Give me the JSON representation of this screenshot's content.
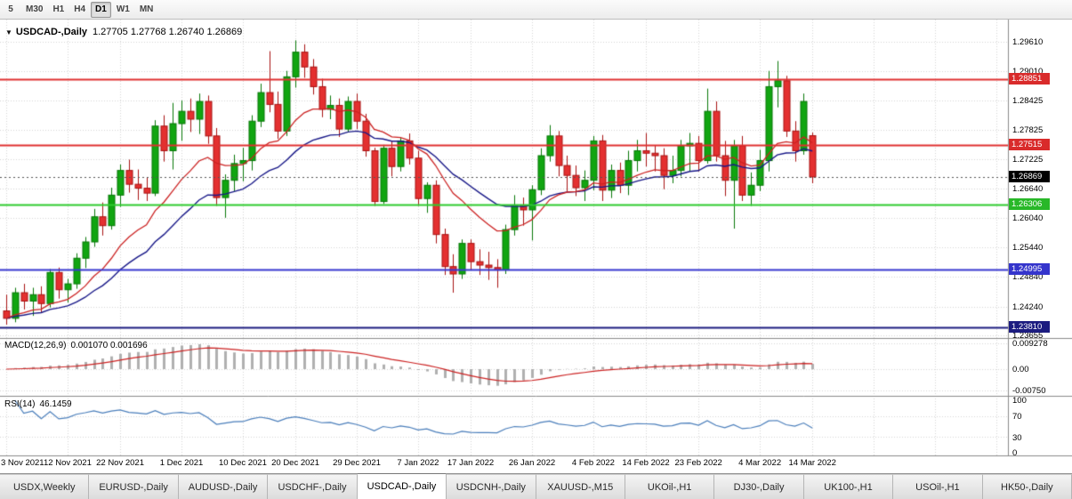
{
  "toolbar": {
    "timeframes": [
      {
        "label": "5",
        "active": false
      },
      {
        "label": "M30",
        "active": false
      },
      {
        "label": "H1",
        "active": false
      },
      {
        "label": "H4",
        "active": false
      },
      {
        "label": "D1",
        "active": true
      },
      {
        "label": "W1",
        "active": false
      },
      {
        "label": "MN",
        "active": false
      }
    ]
  },
  "chart": {
    "marker": "▼",
    "symbol_title": "USDCAD-,Daily",
    "ohlc_text": "1.27705 1.27768 1.26740 1.26869"
  },
  "indicators": {
    "macd": {
      "label": "MACD(12,26,9)",
      "values": "0.001070 0.001696",
      "axis": [
        "0.009278",
        "0.00",
        "-0.00750"
      ]
    },
    "rsi": {
      "label": "RSI(14)",
      "value": "46.1459",
      "axis": [
        "100",
        "70",
        "30",
        "0"
      ]
    }
  },
  "price_axis": {
    "badges": [
      {
        "price": 1.28851,
        "color": "#d92b2b",
        "name": "resistance-1-badge"
      },
      {
        "price": 1.27515,
        "color": "#d92b2b",
        "name": "resistance-2-badge"
      },
      {
        "price": 1.26869,
        "color": "#000000",
        "name": "current-price-badge"
      },
      {
        "price": 1.26306,
        "color": "#28b828",
        "name": "support-green-badge"
      },
      {
        "price": 1.24995,
        "color": "#3434cc",
        "name": "support-blue-badge"
      },
      {
        "price": 1.2381,
        "color": "#1c1c80",
        "name": "support-navy-badge"
      }
    ]
  },
  "hlines": [
    {
      "price": 1.28851,
      "color": "#e03030",
      "width": 2
    },
    {
      "price": 1.27515,
      "color": "#e03030",
      "width": 2
    },
    {
      "price": 1.26306,
      "color": "#2ecc2e",
      "width": 2
    },
    {
      "price": 1.24995,
      "color": "#3838d0",
      "width": 2
    },
    {
      "price": 1.2381,
      "color": "#1c1c80",
      "width": 2
    }
  ],
  "colors": {
    "bull": "#11a511",
    "bull_border": "#077707",
    "bear": "#e43030",
    "bear_border": "#a81212",
    "ma_fast": "#cc2222",
    "ma_slow": "#181888",
    "macd_hist": "#b0b0b0",
    "macd_signal": "#cc2222",
    "rsi_line": "#4a7ebb",
    "grid": "#d6d6d6",
    "separator": "#8a8a8a"
  },
  "chart_data": {
    "type": "candlestick",
    "symbol": "USDCAD",
    "period": "Daily",
    "current_ohlc": {
      "open": "1.27705",
      "high": "1.27768",
      "low": "1.26740",
      "close": "1.26869"
    },
    "current_close": 1.26869,
    "y_axis_ticks": [
      1.2961,
      1.2901,
      1.28425,
      1.27825,
      1.27225,
      1.2664,
      1.2604,
      1.2544,
      1.2484,
      1.2424,
      1.23655
    ],
    "date_ticks": [
      {
        "index": 0,
        "label": "3 Nov 2021"
      },
      {
        "index": 7,
        "label": "12 Nov 2021"
      },
      {
        "index": 13,
        "label": "22 Nov 2021"
      },
      {
        "index": 20,
        "label": "1 Dec 2021"
      },
      {
        "index": 27,
        "label": "10 Dec 2021"
      },
      {
        "index": 33,
        "label": "20 Dec 2021"
      },
      {
        "index": 40,
        "label": "29 Dec 2021"
      },
      {
        "index": 47,
        "label": "7 Jan 2022"
      },
      {
        "index": 53,
        "label": "17 Jan 2022"
      },
      {
        "index": 60,
        "label": "26 Jan 2022"
      },
      {
        "index": 67,
        "label": "4 Feb 2022"
      },
      {
        "index": 73,
        "label": "14 Feb 2022"
      },
      {
        "index": 79,
        "label": "23 Feb 2022"
      },
      {
        "index": 86,
        "label": "4 Mar 2022"
      },
      {
        "index": 92,
        "label": "14 Mar 2022"
      }
    ],
    "candles": [
      [
        1.2415,
        1.2448,
        1.2387,
        1.24
      ],
      [
        1.24,
        1.2462,
        1.2392,
        1.2452
      ],
      [
        1.2452,
        1.247,
        1.2418,
        1.2435
      ],
      [
        1.2435,
        1.2462,
        1.2405,
        1.2448
      ],
      [
        1.2448,
        1.2465,
        1.2412,
        1.243
      ],
      [
        1.243,
        1.25,
        1.2422,
        1.2493
      ],
      [
        1.2493,
        1.2503,
        1.244,
        1.2458
      ],
      [
        1.2458,
        1.248,
        1.2432,
        1.247
      ],
      [
        1.247,
        1.2532,
        1.246,
        1.2522
      ],
      [
        1.2522,
        1.2565,
        1.2502,
        1.2555
      ],
      [
        1.2555,
        1.2622,
        1.2545,
        1.2606
      ],
      [
        1.2606,
        1.2635,
        1.2568,
        1.2588
      ],
      [
        1.2588,
        1.2665,
        1.258,
        1.265
      ],
      [
        1.265,
        1.2712,
        1.2626,
        1.27
      ],
      [
        1.27,
        1.2722,
        1.2655,
        1.2672
      ],
      [
        1.2672,
        1.2702,
        1.264,
        1.2664
      ],
      [
        1.2664,
        1.2686,
        1.2638,
        1.2654
      ],
      [
        1.2654,
        1.2802,
        1.2648,
        1.279
      ],
      [
        1.279,
        1.2812,
        1.2718,
        1.274
      ],
      [
        1.274,
        1.2837,
        1.2702,
        1.2795
      ],
      [
        1.2795,
        1.2842,
        1.276,
        1.282
      ],
      [
        1.282,
        1.2846,
        1.2778,
        1.2804
      ],
      [
        1.2804,
        1.2856,
        1.2774,
        1.284
      ],
      [
        1.284,
        1.2852,
        1.2754,
        1.277
      ],
      [
        1.277,
        1.2786,
        1.2628,
        1.2645
      ],
      [
        1.2645,
        1.2692,
        1.2604,
        1.268
      ],
      [
        1.268,
        1.2732,
        1.2658,
        1.2714
      ],
      [
        1.2714,
        1.2746,
        1.2678,
        1.272
      ],
      [
        1.272,
        1.2812,
        1.27,
        1.28
      ],
      [
        1.28,
        1.2876,
        1.2788,
        1.2858
      ],
      [
        1.2858,
        1.2942,
        1.2818,
        1.2834
      ],
      [
        1.2834,
        1.286,
        1.2764,
        1.278
      ],
      [
        1.278,
        1.2902,
        1.277,
        1.289
      ],
      [
        1.289,
        1.2964,
        1.2868,
        1.294
      ],
      [
        1.294,
        1.2956,
        1.2888,
        1.291
      ],
      [
        1.291,
        1.2926,
        1.2854,
        1.287
      ],
      [
        1.287,
        1.2886,
        1.2808,
        1.2824
      ],
      [
        1.2824,
        1.2852,
        1.2804,
        1.2832
      ],
      [
        1.2832,
        1.2846,
        1.2768,
        1.2784
      ],
      [
        1.2784,
        1.285,
        1.2778,
        1.284
      ],
      [
        1.284,
        1.2856,
        1.2784,
        1.28
      ],
      [
        1.28,
        1.2815,
        1.2728,
        1.274
      ],
      [
        1.274,
        1.2746,
        1.2628,
        1.2637
      ],
      [
        1.2637,
        1.2752,
        1.2632,
        1.2745
      ],
      [
        1.2745,
        1.276,
        1.2688,
        1.2708
      ],
      [
        1.2708,
        1.2766,
        1.2698,
        1.276
      ],
      [
        1.276,
        1.2775,
        1.2712,
        1.2725
      ],
      [
        1.2725,
        1.274,
        1.2628,
        1.2643
      ],
      [
        1.2643,
        1.2676,
        1.2614,
        1.267
      ],
      [
        1.267,
        1.268,
        1.2552,
        1.257
      ],
      [
        1.257,
        1.2582,
        1.2488,
        1.2505
      ],
      [
        1.2505,
        1.253,
        1.2452,
        1.249
      ],
      [
        1.249,
        1.256,
        1.248,
        1.2552
      ],
      [
        1.2552,
        1.256,
        1.2498,
        1.2515
      ],
      [
        1.2515,
        1.254,
        1.2488,
        1.2508
      ],
      [
        1.2508,
        1.2535,
        1.2478,
        1.2503
      ],
      [
        1.2503,
        1.252,
        1.2462,
        1.2498
      ],
      [
        1.2498,
        1.259,
        1.249,
        1.258
      ],
      [
        1.258,
        1.265,
        1.2568,
        1.263
      ],
      [
        1.263,
        1.2645,
        1.2588,
        1.262
      ],
      [
        1.262,
        1.267,
        1.2558,
        1.2661
      ],
      [
        1.2661,
        1.2745,
        1.265,
        1.273
      ],
      [
        1.273,
        1.2792,
        1.2718,
        1.277
      ],
      [
        1.277,
        1.278,
        1.2688,
        1.271
      ],
      [
        1.271,
        1.273,
        1.2658,
        1.269
      ],
      [
        1.269,
        1.271,
        1.2648,
        1.2665
      ],
      [
        1.2665,
        1.27,
        1.2638,
        1.268
      ],
      [
        1.268,
        1.277,
        1.266,
        1.276
      ],
      [
        1.276,
        1.2772,
        1.2638,
        1.266
      ],
      [
        1.266,
        1.2712,
        1.2644,
        1.27
      ],
      [
        1.27,
        1.2716,
        1.2654,
        1.267
      ],
      [
        1.267,
        1.274,
        1.265,
        1.272
      ],
      [
        1.272,
        1.2762,
        1.2698,
        1.274
      ],
      [
        1.274,
        1.2776,
        1.2708,
        1.2735
      ],
      [
        1.2735,
        1.275,
        1.2698,
        1.273
      ],
      [
        1.273,
        1.2745,
        1.2662,
        1.269
      ],
      [
        1.269,
        1.273,
        1.2674,
        1.27
      ],
      [
        1.27,
        1.2762,
        1.2688,
        1.275
      ],
      [
        1.275,
        1.2776,
        1.2698,
        1.2755
      ],
      [
        1.2755,
        1.277,
        1.2698,
        1.272
      ],
      [
        1.272,
        1.2866,
        1.2714,
        1.282
      ],
      [
        1.282,
        1.284,
        1.2718,
        1.273
      ],
      [
        1.273,
        1.276,
        1.2648,
        1.268
      ],
      [
        1.268,
        1.2762,
        1.2582,
        1.275
      ],
      [
        1.275,
        1.277,
        1.2638,
        1.265
      ],
      [
        1.265,
        1.2696,
        1.2628,
        1.267
      ],
      [
        1.267,
        1.2742,
        1.2658,
        1.272
      ],
      [
        1.272,
        1.2902,
        1.2698,
        1.287
      ],
      [
        1.287,
        1.2922,
        1.2828,
        1.2882
      ],
      [
        1.2882,
        1.2892,
        1.2768,
        1.278
      ],
      [
        1.278,
        1.28,
        1.2718,
        1.274
      ],
      [
        1.274,
        1.2856,
        1.2732,
        1.284
      ],
      [
        1.27705,
        1.27768,
        1.2674,
        1.26869
      ]
    ]
  },
  "tabs": [
    {
      "label": "USDX,Weekly",
      "active": false
    },
    {
      "label": "EURUSD-,Daily",
      "active": false
    },
    {
      "label": "AUDUSD-,Daily",
      "active": false
    },
    {
      "label": "USDCHF-,Daily",
      "active": false
    },
    {
      "label": "USDCAD-,Daily",
      "active": true
    },
    {
      "label": "USDCNH-,Daily",
      "active": false
    },
    {
      "label": "XAUUSD-,M15",
      "active": false
    },
    {
      "label": "UKOil-,H1",
      "active": false
    },
    {
      "label": "DJ30-,Daily",
      "active": false
    },
    {
      "label": "UK100-,H1",
      "active": false
    },
    {
      "label": "USOil-,H1",
      "active": false
    },
    {
      "label": "HK50-,Daily",
      "active": false
    }
  ]
}
